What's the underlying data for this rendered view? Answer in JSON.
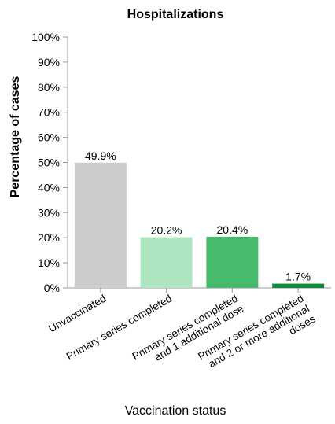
{
  "chart_data": {
    "type": "bar",
    "title": "Hospitalizations",
    "xlabel": "Vaccination status",
    "ylabel": "Percentage of cases",
    "ylim": [
      0,
      100
    ],
    "yticks": [
      "0%",
      "10%",
      "20%",
      "30%",
      "40%",
      "50%",
      "60%",
      "70%",
      "80%",
      "90%",
      "100%"
    ],
    "grid": false,
    "categories": [
      [
        "Unvaccinated"
      ],
      [
        "Primary series completed"
      ],
      [
        "Primary series completed",
        "and 1 additional dose"
      ],
      [
        "Primary series completed",
        "and 2 or more additional",
        "doses"
      ]
    ],
    "values": [
      49.9,
      20.2,
      20.4,
      1.7
    ],
    "data_labels": [
      "49.9%",
      "20.2%",
      "20.4%",
      "1.7%"
    ],
    "colors": [
      "#cccccc",
      "#ade5c0",
      "#47ba6c",
      "#0d8c3c"
    ]
  }
}
